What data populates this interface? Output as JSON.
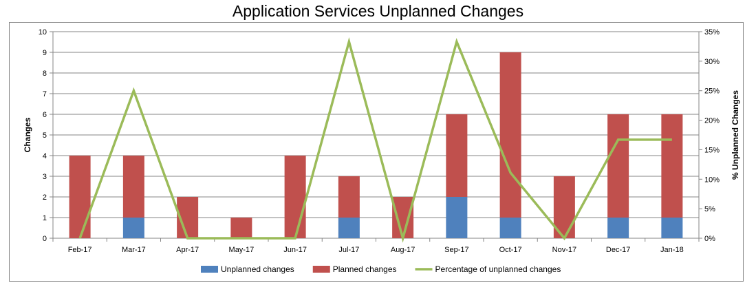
{
  "chart_data": {
    "type": "bar",
    "stacked": true,
    "title": "Application Services Unplanned Changes",
    "categories": [
      "Feb-17",
      "Mar-17",
      "Apr-17",
      "May-17",
      "Jun-17",
      "Jul-17",
      "Aug-17",
      "Sep-17",
      "Oct-17",
      "Nov-17",
      "Dec-17",
      "Jan-18"
    ],
    "series": [
      {
        "name": "Unplanned changes",
        "color": "#4f81bd",
        "values": [
          0,
          1,
          0,
          0,
          0,
          1,
          0,
          2,
          1,
          0,
          1,
          1
        ]
      },
      {
        "name": "Planned changes",
        "color": "#c0504d",
        "values": [
          4,
          3,
          2,
          1,
          4,
          2,
          2,
          4,
          8,
          3,
          5,
          5
        ]
      }
    ],
    "line_series": {
      "name": "Percentage of unplanned changes",
      "color": "#9bbb59",
      "axis": "secondary",
      "values": [
        0,
        25,
        0,
        0,
        0,
        33.3,
        0,
        33.3,
        11.1,
        0,
        16.7,
        16.7
      ]
    },
    "ylabel": "Changes",
    "y2label": "% Unplanned Changes",
    "ylim": [
      0,
      10
    ],
    "y2lim": [
      0,
      35
    ],
    "yticks": [
      "0",
      "1",
      "2",
      "3",
      "4",
      "5",
      "6",
      "7",
      "8",
      "9",
      "10"
    ],
    "y2ticks": [
      "0%",
      "5%",
      "10%",
      "15%",
      "20%",
      "25%",
      "30%",
      "35%"
    ],
    "grid": "horizontal",
    "legend_position": "bottom"
  }
}
